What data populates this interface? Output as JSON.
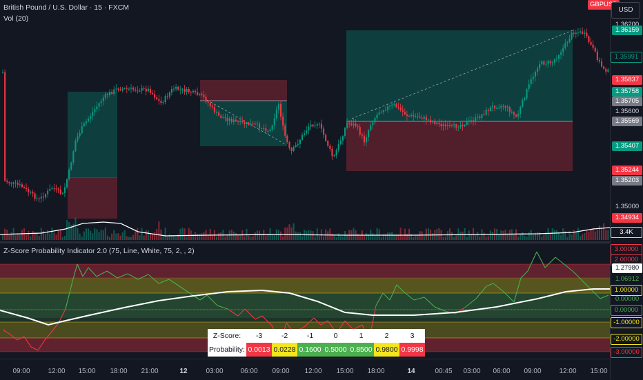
{
  "header": {
    "chart_title": "British Pound / U.S. Dollar · 15 · FXCM",
    "volume_label": "Vol (20)",
    "symbol_badge": "GBPUSD",
    "currency_button": "USD"
  },
  "indicator": {
    "title": "Z-Score Probability Indicator 2.0 (75, Line, White, 75, 2, , 2)"
  },
  "price_axis": {
    "labels": [
      {
        "text": "1.36200",
        "kind": "plain"
      },
      {
        "text": "1.36159",
        "kind": "green"
      },
      {
        "text": "1.35991",
        "kind": "green-outline"
      },
      {
        "text": "1.35837",
        "kind": "red"
      },
      {
        "text": "1.35758",
        "kind": "green"
      },
      {
        "text": "1.35705",
        "kind": "grey"
      },
      {
        "text": "1.35600",
        "kind": "plain"
      },
      {
        "text": "1.35569",
        "kind": "grey"
      },
      {
        "text": "1.35407",
        "kind": "green"
      },
      {
        "text": "1.35244",
        "kind": "red"
      },
      {
        "text": "1.35203",
        "kind": "grey"
      },
      {
        "text": "1.35000",
        "kind": "plain"
      },
      {
        "text": "1.34934",
        "kind": "red"
      },
      {
        "text": "3.4K",
        "kind": "dark"
      }
    ]
  },
  "osc_axis": {
    "labels": [
      {
        "text": "3.00000",
        "kind": "red-outline"
      },
      {
        "text": "2.00000",
        "kind": "red-outline"
      },
      {
        "text": "1.27980",
        "kind": "white"
      },
      {
        "text": "1.06912",
        "kind": "green-text"
      },
      {
        "text": "1.00000",
        "kind": "yellow-outline"
      },
      {
        "text": "0.00000",
        "kind": "green-text"
      },
      {
        "text": "0.00000",
        "kind": "green-outline"
      },
      {
        "text": "-1.00000",
        "kind": "yellow-outline"
      },
      {
        "text": "-2.00000",
        "kind": "yellow-fill"
      },
      {
        "text": "-3.00000",
        "kind": "red-outline"
      }
    ]
  },
  "time_axis": {
    "labels": [
      {
        "text": "09:00",
        "bold": false
      },
      {
        "text": "12:00",
        "bold": false
      },
      {
        "text": "15:00",
        "bold": false
      },
      {
        "text": "18:00",
        "bold": false
      },
      {
        "text": "21:00",
        "bold": false
      },
      {
        "text": "12",
        "bold": true
      },
      {
        "text": "03:00",
        "bold": false
      },
      {
        "text": "06:00",
        "bold": false
      },
      {
        "text": "09:00",
        "bold": false
      },
      {
        "text": "12:00",
        "bold": false
      },
      {
        "text": "15:00",
        "bold": false
      },
      {
        "text": "18:00",
        "bold": false
      },
      {
        "text": "14",
        "bold": true
      },
      {
        "text": "00:45",
        "bold": false
      },
      {
        "text": "03:00",
        "bold": false
      },
      {
        "text": "06:00",
        "bold": false
      },
      {
        "text": "09:00",
        "bold": false
      },
      {
        "text": "12:00",
        "bold": false
      },
      {
        "text": "15:00",
        "bold": false
      }
    ]
  },
  "probability_table": {
    "zscore_label": "Z-Score:",
    "probability_label": "Probability:",
    "zscores": [
      "-3",
      "-2",
      "-1",
      "0",
      "1",
      "2",
      "3"
    ],
    "probabilities": [
      "0.0013",
      "0.0228",
      "0.1600",
      "0.5000",
      "0.8500",
      "0.9800",
      "0.9998"
    ],
    "cell_colors": [
      "#f23645",
      "#f5e61b",
      "#4caf50",
      "#4caf50",
      "#4caf50",
      "#f5e61b",
      "#f23645"
    ]
  },
  "colors": {
    "background": "#131722",
    "bull": "#089981",
    "bear": "#f23645",
    "zscore_green": "#4caf50",
    "zscore_red": "#f23645",
    "mean_line": "#ffffff"
  }
}
